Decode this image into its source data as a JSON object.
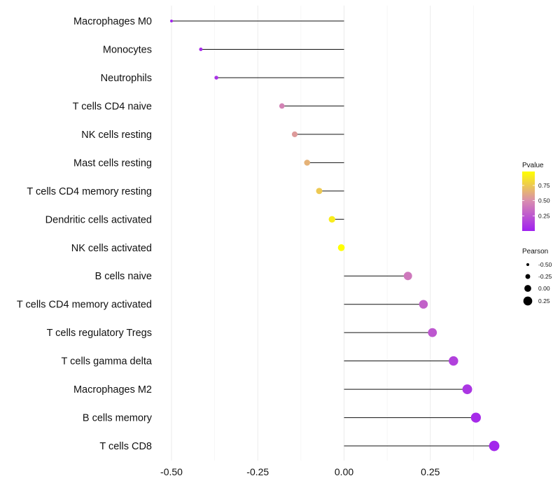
{
  "chart_data": {
    "type": "lollipop",
    "title": "",
    "xlabel": "",
    "ylabel": "",
    "xlim": [
      -0.5,
      0.435
    ],
    "x_ticks": [
      -0.5,
      -0.25,
      0.0,
      0.25
    ],
    "x_tick_labels": [
      "-0.50",
      "-0.25",
      "0.00",
      "0.25"
    ],
    "grid": true,
    "baseline": 0.0,
    "categories": [
      "Macrophages M0",
      "Monocytes",
      "Neutrophils",
      "T cells CD4 naive",
      "NK cells resting",
      "Mast cells resting",
      "T cells CD4 memory resting",
      "Dendritic cells activated",
      "NK cells activated",
      "B cells naive",
      "T cells CD4 memory activated",
      "T cells regulatory  Tregs ",
      "T cells gamma delta",
      "Macrophages M2",
      "B cells memory",
      "T cells CD8"
    ],
    "pearson": [
      -0.5,
      -0.415,
      -0.37,
      -0.18,
      -0.143,
      -0.107,
      -0.072,
      -0.035,
      -0.008,
      0.185,
      0.23,
      0.256,
      0.317,
      0.357,
      0.382,
      0.435
    ],
    "pvalue": [
      0.01,
      0.05,
      0.08,
      0.45,
      0.55,
      0.65,
      0.75,
      0.9,
      0.98,
      0.4,
      0.3,
      0.25,
      0.15,
      0.1,
      0.05,
      0.03
    ],
    "color_legend": {
      "title": "Pvalue",
      "position": "right",
      "ticks": [
        0.25,
        0.5,
        0.75
      ],
      "tick_labels": [
        "0.25",
        "0.50",
        "0.75"
      ],
      "range": [
        0.0,
        0.98
      ],
      "colors": [
        "#A020F0",
        "#D88CB0",
        "#FFFF00"
      ]
    },
    "size_legend": {
      "title": "Pearson",
      "position": "right",
      "values": [
        -0.5,
        -0.25,
        0.0,
        0.25
      ],
      "labels": [
        "-0.50",
        "-0.25",
        "0.00",
        "0.25"
      ]
    }
  }
}
